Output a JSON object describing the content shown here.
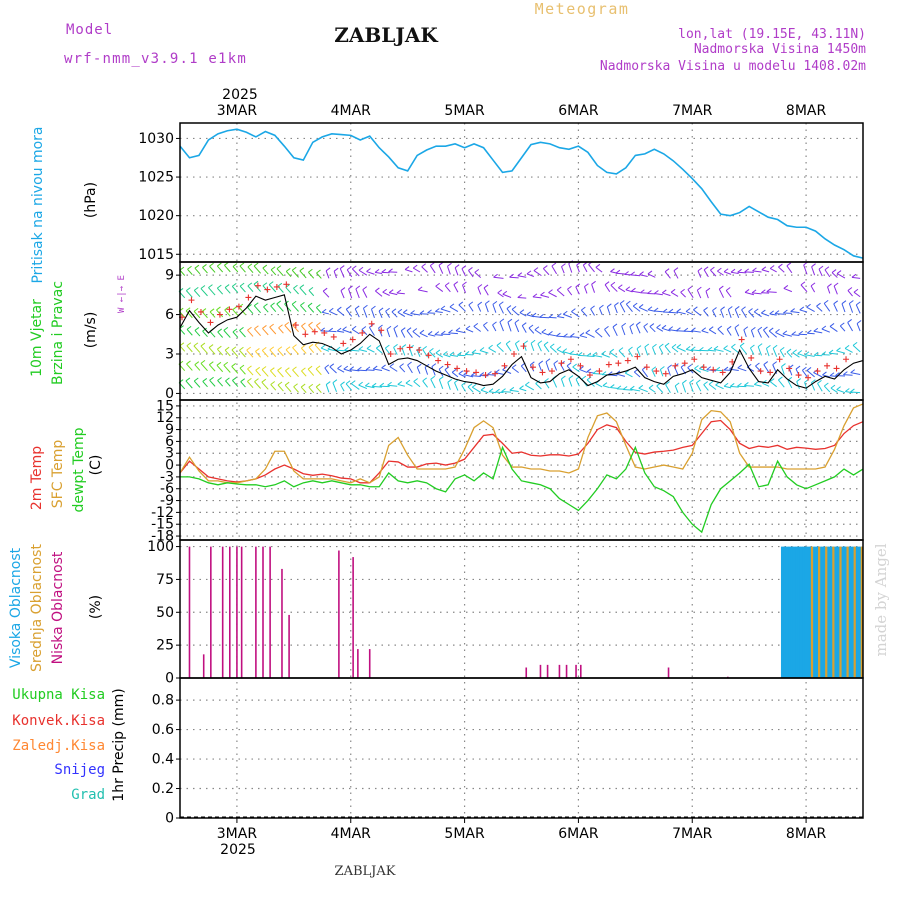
{
  "header": {
    "model_label": "Model",
    "model_name": "wrf-nmm_v3.9.1 e1km",
    "title": "ZABLJAK",
    "meteogram": "Meteogram",
    "lonlat": "lon,lat (19.15E, 43.11N)",
    "altitude": "Nadmorska Visina 1450m",
    "model_altitude": "Nadmorska Visina u modelu 1408.02m"
  },
  "footer": {
    "station": "ZABLJAK",
    "watermark": "made by Angel"
  },
  "colors": {
    "pressure": "#1ba7e6",
    "wind_black": "#000000",
    "wind_red": "#e8322e",
    "t2m": "#e8322e",
    "sfc": "#d9a030",
    "dew": "#22cc22",
    "high_cloud": "#1ba7e6",
    "mid_cloud": "#d9a030",
    "low_cloud": "#c01080",
    "rain_total": "#22cc22",
    "rain_conv": "#e8322e",
    "rain_frz": "#ff8833",
    "snow": "#3333ff",
    "hail": "#22c0b0",
    "meta": "#b03cc8"
  },
  "chart_data": [
    {
      "type": "line",
      "panel": "pressure",
      "ylabel_1": "Pritisak na nivou mora",
      "ylabel_unit": "(hPa)",
      "ylim": [
        1014,
        1032
      ],
      "yticks": [
        1015,
        1020,
        1025,
        1030
      ],
      "xlim": [
        0,
        144
      ],
      "xtick_labels": [
        "3MAR",
        "4MAR",
        "5MAR",
        "6MAR",
        "7MAR",
        "8MAR"
      ],
      "xtick_hours": [
        12,
        36,
        60,
        84,
        108,
        132
      ],
      "top_year": "2025",
      "series": [
        {
          "x": [
            0,
            2,
            4,
            6,
            8,
            10,
            12,
            14,
            16,
            18,
            20,
            22,
            24,
            26,
            28,
            30,
            32,
            34,
            36,
            38,
            40,
            42,
            44,
            46,
            48,
            50,
            52,
            54,
            56,
            58,
            60,
            62,
            64,
            66,
            68,
            70,
            72,
            74,
            76,
            78,
            80,
            82,
            84,
            86,
            88,
            90,
            92,
            94,
            96,
            98,
            100,
            102,
            104,
            106,
            108,
            110,
            112,
            114,
            116,
            118,
            120,
            122,
            124,
            126,
            128,
            130,
            132,
            134,
            136,
            138,
            140,
            142,
            144
          ],
          "y": [
            1029,
            1027.5,
            1027.8,
            1029.8,
            1030.6,
            1031,
            1031.2,
            1030.8,
            1030.2,
            1030.9,
            1030.4,
            1029,
            1027.5,
            1027.2,
            1029.5,
            1030.2,
            1030.6,
            1030.5,
            1030.4,
            1029.8,
            1030.3,
            1028.8,
            1027.6,
            1026.2,
            1025.8,
            1027.8,
            1028.5,
            1029,
            1029,
            1029.3,
            1028.8,
            1029.3,
            1028.8,
            1027.2,
            1025.6,
            1025.8,
            1027.5,
            1029.2,
            1029.5,
            1029.3,
            1028.8,
            1028.6,
            1029,
            1028.2,
            1026.5,
            1025.6,
            1025.4,
            1026.2,
            1027.8,
            1028,
            1028.6,
            1028,
            1027.1,
            1026,
            1024.8,
            1023.5,
            1021.8,
            1020.2,
            1020,
            1020.4,
            1021.2,
            1020.5,
            1019.8,
            1019.5,
            1018.7,
            1018.5,
            1018.5,
            1018,
            1017,
            1016.2,
            1015.6,
            1014.8,
            1014.5
          ]
        }
      ]
    },
    {
      "type": "line",
      "panel": "wind",
      "ylabel_1": "10m Vjetar",
      "ylabel_2": "Brzina i Pravac",
      "ylabel_unit": "(m/s)",
      "compass": "W  ←|→  E",
      "ylim": [
        -0.5,
        10
      ],
      "yticks": [
        0,
        3,
        6,
        9
      ],
      "xlim": [
        0,
        144
      ],
      "series": [
        {
          "name": "speed",
          "x": [
            0,
            2,
            4,
            6,
            8,
            10,
            12,
            14,
            16,
            18,
            20,
            22,
            24,
            26,
            28,
            30,
            32,
            34,
            36,
            38,
            40,
            42,
            44,
            46,
            48,
            50,
            52,
            54,
            56,
            58,
            60,
            62,
            64,
            66,
            68,
            70,
            72,
            74,
            76,
            78,
            80,
            82,
            84,
            86,
            88,
            90,
            92,
            94,
            96,
            98,
            100,
            102,
            104,
            106,
            108,
            110,
            112,
            114,
            116,
            118,
            120,
            122,
            124,
            126,
            128,
            130,
            132,
            134,
            136,
            138,
            140,
            142,
            144
          ],
          "y": [
            5,
            6.3,
            5.4,
            4.6,
            5.2,
            5.6,
            5.8,
            6.5,
            7.4,
            7.1,
            7.3,
            7.5,
            4.4,
            3.7,
            3.9,
            3.8,
            3.5,
            3.0,
            3.3,
            3.8,
            4.5,
            4.0,
            2.2,
            2.6,
            2.7,
            2.5,
            2.1,
            1.7,
            1.4,
            1.1,
            0.9,
            0.8,
            0.6,
            0.7,
            1.3,
            2.2,
            2.8,
            1.2,
            0.8,
            0.9,
            1.5,
            1.8,
            1.3,
            0.6,
            0.9,
            1.4,
            1.5,
            1.7,
            2.0,
            1.2,
            0.9,
            0.7,
            1.3,
            1.5,
            1.8,
            1.2,
            1.0,
            0.8,
            1.6,
            3.3,
            1.9,
            0.9,
            0.8,
            1.8,
            1.1,
            0.6,
            0.4,
            0.9,
            1.3,
            1.1,
            1.8,
            2.3,
            2.5
          ]
        }
      ]
    },
    {
      "type": "line",
      "panel": "temperature",
      "ylabel_1": "2m Temp",
      "ylabel_2": "SFC Temp",
      "ylabel_3": "dewpt Temp",
      "ylabel_unit": "(C)",
      "ylim": [
        -19,
        16.5
      ],
      "yticks": [
        15,
        12,
        9,
        6,
        3,
        0,
        -3,
        -6,
        -9,
        -12,
        -15,
        -18
      ],
      "xlim": [
        0,
        144
      ],
      "series": [
        {
          "name": "2m Temp",
          "x": [
            0,
            2,
            4,
            6,
            8,
            10,
            12,
            14,
            16,
            18,
            20,
            22,
            24,
            26,
            28,
            30,
            32,
            34,
            36,
            38,
            40,
            42,
            44,
            46,
            48,
            50,
            52,
            54,
            56,
            58,
            60,
            62,
            64,
            66,
            68,
            70,
            72,
            74,
            76,
            78,
            80,
            82,
            84,
            86,
            88,
            90,
            92,
            94,
            96,
            98,
            100,
            102,
            104,
            106,
            108,
            110,
            112,
            114,
            116,
            118,
            120,
            122,
            124,
            126,
            128,
            130,
            132,
            134,
            136,
            138,
            140,
            142,
            144
          ],
          "y": [
            -2,
            1,
            -1,
            -3,
            -3.5,
            -4,
            -4.3,
            -4,
            -3.5,
            -2.5,
            -1,
            0,
            -1,
            -2.2,
            -2.6,
            -2.3,
            -2.7,
            -3.3,
            -3.5,
            -4.5,
            -4.5,
            -2,
            1,
            0.8,
            -0.5,
            -0.5,
            0.3,
            0.5,
            0,
            0.5,
            1.5,
            4.5,
            7.5,
            7.8,
            5.5,
            3,
            3.3,
            2.5,
            2.3,
            2.6,
            2.6,
            2.3,
            2.8,
            5.5,
            9,
            10.2,
            9.5,
            6,
            3.2,
            2.8,
            3.3,
            3.5,
            3.8,
            4.5,
            5,
            8,
            11,
            11.3,
            9,
            5.5,
            4.2,
            4.8,
            4.5,
            5,
            4,
            4.5,
            4.3,
            4,
            4.2,
            5,
            8,
            10,
            11
          ]
        },
        {
          "name": "SFC Temp",
          "x": [
            0,
            2,
            4,
            6,
            8,
            10,
            12,
            14,
            16,
            18,
            20,
            22,
            24,
            26,
            28,
            30,
            32,
            34,
            36,
            38,
            40,
            42,
            44,
            46,
            48,
            50,
            52,
            54,
            56,
            58,
            60,
            62,
            64,
            66,
            68,
            70,
            72,
            74,
            76,
            78,
            80,
            82,
            84,
            86,
            88,
            90,
            92,
            94,
            96,
            98,
            100,
            102,
            104,
            106,
            108,
            110,
            112,
            114,
            116,
            118,
            120,
            122,
            124,
            126,
            128,
            130,
            132,
            134,
            136,
            138,
            140,
            142,
            144
          ],
          "y": [
            -2,
            2,
            -1.5,
            -4,
            -4,
            -4.5,
            -4.5,
            -4,
            -3.5,
            -1,
            3.5,
            3.5,
            -1.5,
            -3.5,
            -3.5,
            -3.5,
            -3.5,
            -4,
            -4.5,
            -3.5,
            -4.5,
            -3,
            5,
            7,
            2.5,
            -1,
            -1,
            -1,
            -1,
            -0.5,
            4,
            9.5,
            11.2,
            9.5,
            2.5,
            -0.5,
            -0.5,
            -1,
            -1,
            -1.5,
            -1.5,
            -2,
            -1,
            7,
            12.5,
            13.2,
            11,
            5,
            -0.5,
            -1,
            -0.5,
            0,
            -0.5,
            -1,
            3,
            11.5,
            13.8,
            13.5,
            11,
            3,
            -0.5,
            -0.5,
            -0.5,
            -0.5,
            -1,
            -1,
            -1,
            -1,
            -0.5,
            4,
            10,
            14.5,
            15.5
          ]
        },
        {
          "name": "dewpt Temp",
          "x": [
            0,
            2,
            4,
            6,
            8,
            10,
            12,
            14,
            16,
            18,
            20,
            22,
            24,
            26,
            28,
            30,
            32,
            34,
            36,
            38,
            40,
            42,
            44,
            46,
            48,
            50,
            52,
            54,
            56,
            58,
            60,
            62,
            64,
            66,
            68,
            70,
            72,
            74,
            76,
            78,
            80,
            82,
            84,
            86,
            88,
            90,
            92,
            94,
            96,
            98,
            100,
            102,
            104,
            106,
            108,
            110,
            112,
            114,
            116,
            118,
            120,
            122,
            124,
            126,
            128,
            130,
            132,
            134,
            136,
            138,
            140,
            142,
            144
          ],
          "y": [
            -3,
            -3,
            -3.5,
            -4.5,
            -5,
            -4.5,
            -4.8,
            -5,
            -5,
            -5.5,
            -5,
            -4,
            -5.5,
            -4.5,
            -4,
            -4.5,
            -4,
            -4.5,
            -5,
            -5,
            -5.5,
            -5.5,
            -2,
            -4,
            -4.5,
            -4,
            -4.5,
            -6,
            -6.8,
            -3.5,
            -2.5,
            -4,
            -2,
            -3.5,
            4.5,
            -1,
            -4,
            -4.5,
            -5,
            -6,
            -8.5,
            -10,
            -11.5,
            -9,
            -6,
            -2.5,
            -3.5,
            -1,
            4.5,
            -2,
            -5.5,
            -6.5,
            -8,
            -12,
            -15,
            -17,
            -10,
            -6,
            -4,
            -2,
            0.2,
            -5.5,
            -5,
            1,
            -3,
            -5,
            -6,
            -5,
            -4,
            -3,
            -1,
            -2.5,
            -1
          ]
        }
      ]
    },
    {
      "type": "bar",
      "panel": "clouds",
      "ylabel_1": "Visoka Oblacnost",
      "ylabel_2": "Srednja Oblacnost",
      "ylabel_3": "Niska Oblacnost",
      "ylabel_unit": "(%)",
      "ylim": [
        0,
        105
      ],
      "yticks": [
        0,
        25,
        50,
        75,
        100
      ],
      "xlim": [
        0,
        144
      ],
      "series": [
        {
          "name": "Niska Oblacnost",
          "x": [
            2,
            5,
            6.5,
            9,
            10.5,
            12,
            13,
            16,
            17.5,
            19,
            21.5,
            23,
            33.5,
            36.5,
            37.5,
            40,
            73,
            76,
            77.5,
            80,
            81.5,
            83.5,
            84.5,
            103,
            115.5
          ],
          "values": [
            100,
            18,
            100,
            100,
            100,
            100,
            100,
            100,
            100,
            100,
            83,
            48,
            97,
            92,
            22,
            22,
            8,
            10,
            10,
            10,
            10,
            10,
            10,
            8,
            1
          ]
        },
        {
          "name": "Visoka Oblacnost",
          "x": [
            127,
            127.5,
            128,
            128.5,
            129,
            129.5,
            130,
            130.5,
            131,
            131.5,
            132,
            132.5,
            133,
            133.5,
            134,
            134.5,
            135,
            135.5,
            136,
            136.5,
            137,
            137.5,
            138,
            138.5,
            139,
            139.5,
            140,
            140.5,
            141,
            141.5,
            142,
            142.5,
            143,
            143.5
          ],
          "values": [
            100,
            100,
            100,
            100,
            100,
            100,
            100,
            100,
            100,
            100,
            100,
            100,
            100,
            100,
            100,
            100,
            100,
            100,
            100,
            100,
            100,
            100,
            100,
            100,
            100,
            100,
            100,
            100,
            100,
            100,
            100,
            100,
            100,
            100
          ]
        },
        {
          "name": "Srednja Oblacnost",
          "x": [
            133.25,
            134.75,
            136.25,
            137.75,
            139.25,
            140.75,
            142.25,
            143.75
          ],
          "values": [
            100,
            100,
            100,
            100,
            100,
            100,
            100,
            100
          ]
        }
      ]
    },
    {
      "type": "bar",
      "panel": "precip",
      "ylabel_1": "Ukupna Kisa",
      "ylabel_2": "Konvek.Kisa",
      "ylabel_3": "Zaledj.Kisa",
      "ylabel_4": "Snijeg",
      "ylabel_5": "Grad",
      "ylabel_unit": "1hr Precip (mm)",
      "ylim": [
        0,
        0.95
      ],
      "yticks": [
        0,
        0.2,
        0.4,
        0.6,
        0.8
      ],
      "ytick_labels": [
        "0",
        "0.2",
        "0.4",
        "0.6",
        "0.8"
      ],
      "xlim": [
        0,
        144
      ],
      "xtick_labels": [
        "3MAR",
        "4MAR",
        "5MAR",
        "6MAR",
        "7MAR",
        "8MAR"
      ],
      "bottom_year": "2025",
      "values": []
    }
  ]
}
